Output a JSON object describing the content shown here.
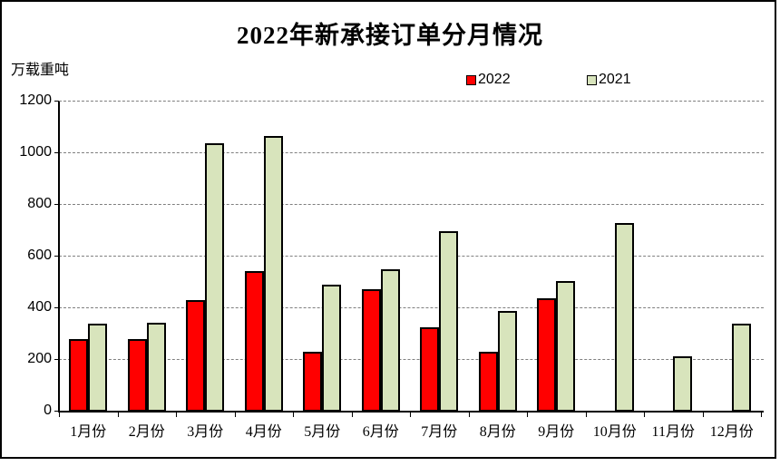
{
  "title": "2022年新承接订单分月情况",
  "unit_label": "万载重吨",
  "legend": {
    "series1_label": "2022",
    "series2_label": "2021"
  },
  "colors": {
    "series1": "#ff0000",
    "series2": "#d8e4bc",
    "bar_border": "#000000",
    "gridline": "#7f7f7f",
    "axis": "#000000",
    "background": "#ffffff"
  },
  "chart_data": {
    "type": "bar",
    "title": "2022年新承接订单分月情况",
    "ylabel": "万载重吨",
    "xlabel": "",
    "ylim": [
      0,
      1200
    ],
    "yticks": [
      0,
      200,
      400,
      600,
      800,
      1000,
      1200
    ],
    "grid": true,
    "legend_position": "top",
    "categories": [
      "1月份",
      "2月份",
      "3月份",
      "4月份",
      "5月份",
      "6月份",
      "7月份",
      "8月份",
      "9月份",
      "10月份",
      "11月份",
      "12月份"
    ],
    "series": [
      {
        "name": "2022",
        "color": "#ff0000",
        "values": [
          280,
          280,
          430,
          545,
          230,
          475,
          325,
          230,
          440,
          0,
          0,
          0
        ]
      },
      {
        "name": "2021",
        "color": "#d8e4bc",
        "values": [
          340,
          345,
          1040,
          1065,
          490,
          550,
          700,
          390,
          505,
          730,
          215,
          340
        ]
      }
    ]
  }
}
